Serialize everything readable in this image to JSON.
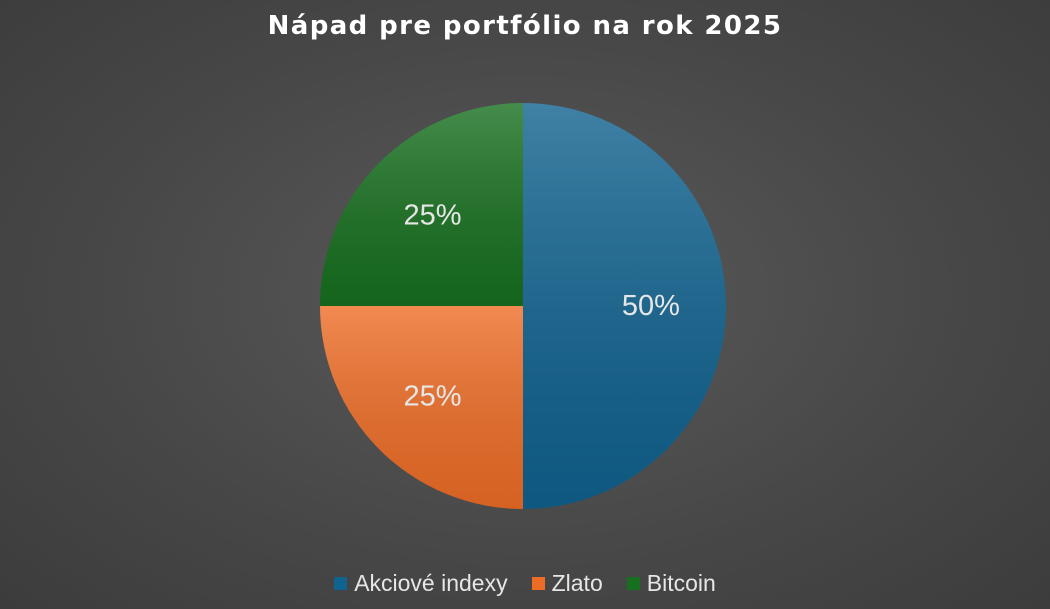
{
  "chart_data": {
    "type": "pie",
    "title": "Nápad pre portfólio na rok 2025",
    "categories": [
      "Akciové indexy",
      "Zlato",
      "Bitcoin"
    ],
    "values": [
      50,
      25,
      25
    ],
    "data_labels": [
      "50%",
      "25%",
      "25%"
    ],
    "colors": [
      "#10628f",
      "#ee6d26",
      "#17701f"
    ],
    "legend_position": "bottom",
    "start_angle": "12 o'clock",
    "direction": "clockwise"
  }
}
